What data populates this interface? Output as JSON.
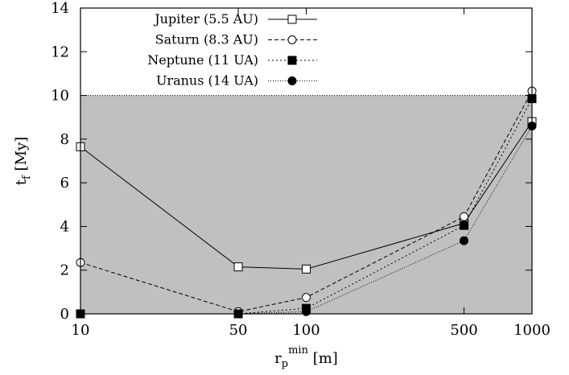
{
  "chart_data": {
    "type": "line",
    "x_scale": "log",
    "xlim": [
      10,
      1000
    ],
    "ylim": [
      0,
      14
    ],
    "x_ticks": [
      10,
      50,
      100,
      500,
      1000
    ],
    "y_ticks": [
      0,
      2,
      4,
      6,
      8,
      10,
      12,
      14
    ],
    "x_tick_labels": [
      "10",
      "50",
      "100",
      "500",
      "1000"
    ],
    "y_tick_labels": [
      "0",
      "2",
      "4",
      "6",
      "8",
      "10",
      "12",
      "14"
    ],
    "ylabel": {
      "main": "t",
      "sub": "f",
      "rest": " [My]"
    },
    "xlabel": {
      "main": "r",
      "sub": "p",
      "sup": "min",
      "rest": " [m]"
    },
    "shaded_region": {
      "y_from": 0,
      "y_to": 10,
      "color": "#c0c0c0"
    },
    "legend_position": "top-center",
    "x": [
      10,
      50,
      100,
      500,
      1000
    ],
    "series": [
      {
        "name": "Jupiter (5.5 AU)",
        "values": [
          7.65,
          2.15,
          2.05,
          4.15,
          8.8
        ],
        "marker": "open-square",
        "dash": "solid"
      },
      {
        "name": "Saturn (8.3 AU)",
        "values": [
          2.35,
          0.1,
          0.75,
          4.45,
          10.2
        ],
        "marker": "open-circle",
        "dash": "dashed"
      },
      {
        "name": "Neptune (11 UA)",
        "values": [
          0.0,
          0.0,
          0.25,
          4.05,
          9.85
        ],
        "marker": "filled-square",
        "dash": "dotted"
      },
      {
        "name": "Uranus (14 UA)",
        "values": [
          0.0,
          0.0,
          0.1,
          3.35,
          8.6
        ],
        "marker": "filled-circle",
        "dash": "fine-dotted"
      }
    ]
  }
}
